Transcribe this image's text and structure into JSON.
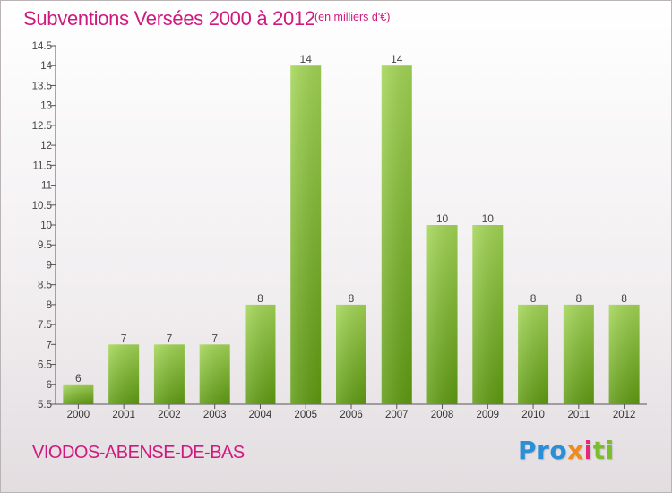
{
  "header": {
    "title": "Subventions Versées 2000 à 2012",
    "unit": "(en milliers d'€)"
  },
  "footer": {
    "commune": "VIODOS-ABENSE-DE-BAS",
    "logo": {
      "p1": "Pro",
      "p2": "x",
      "p3": "i",
      "p4": "ti"
    }
  },
  "colors": {
    "accent": "#d0197e",
    "bar_top": "#a3d656",
    "bar_bottom": "#5f9b12"
  },
  "chart_data": {
    "type": "bar",
    "categories": [
      "2000",
      "2001",
      "2002",
      "2003",
      "2004",
      "2005",
      "2006",
      "2007",
      "2008",
      "2009",
      "2010",
      "2011",
      "2012"
    ],
    "values": [
      6,
      7,
      7,
      7,
      8,
      14,
      8,
      14,
      10,
      10,
      8,
      8,
      8
    ],
    "data_labels": [
      "6",
      "7",
      "7",
      "7",
      "8",
      "14",
      "8",
      "14",
      "10",
      "10",
      "8",
      "8",
      "8"
    ],
    "yticks": [
      "5.5",
      "6",
      "6.5",
      "7",
      "7.5",
      "8",
      "8.5",
      "9",
      "9.5",
      "10",
      "10.5",
      "11",
      "11.5",
      "12",
      "12.5",
      "13",
      "13.5",
      "14",
      "14.5"
    ],
    "ylim": [
      5.5,
      14.5
    ],
    "grid": false,
    "legend": "none"
  }
}
